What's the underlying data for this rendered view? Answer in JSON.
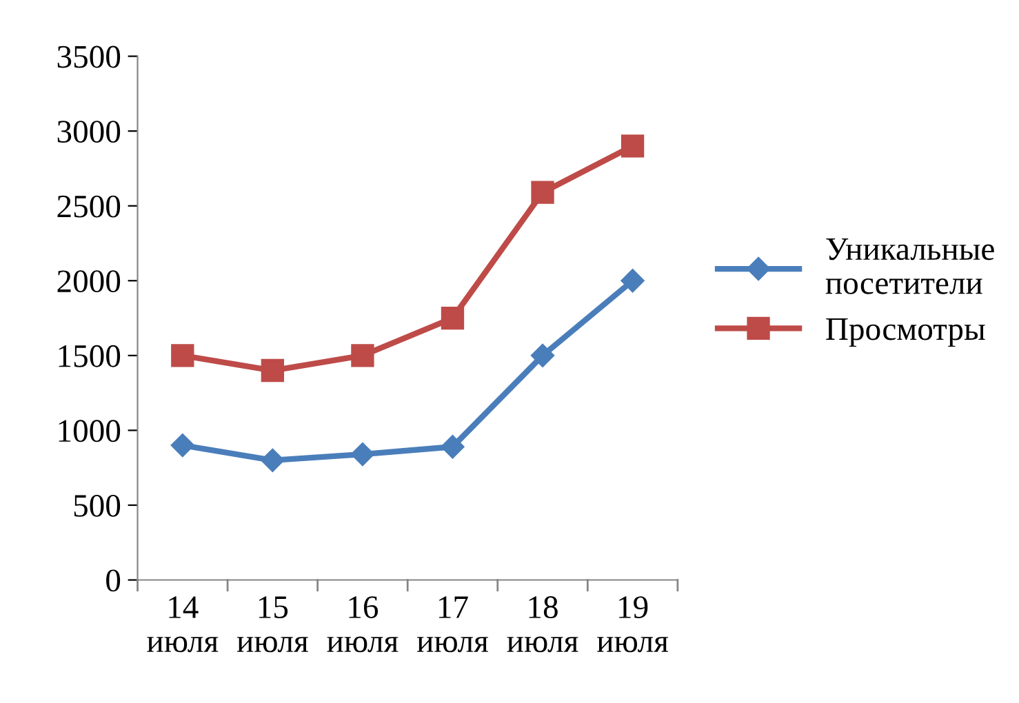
{
  "chart_data": {
    "type": "line",
    "categories": [
      "14 июля",
      "15 июля",
      "16 июля",
      "17 июля",
      "18 июля",
      "19 июля"
    ],
    "series": [
      {
        "name": "Уникальные посетители",
        "color": "#4a7ebb",
        "marker": "diamond",
        "values": [
          900,
          800,
          840,
          890,
          1500,
          2000
        ]
      },
      {
        "name": "Просмотры",
        "color": "#be4b48",
        "marker": "square",
        "values": [
          1500,
          1400,
          1500,
          1750,
          2590,
          2900
        ]
      }
    ],
    "ylim": [
      0,
      3500
    ],
    "yticks": [
      0,
      500,
      1000,
      1500,
      2000,
      2500,
      3000,
      3500
    ],
    "grid": false,
    "legend": "right",
    "line_style": "solid"
  }
}
